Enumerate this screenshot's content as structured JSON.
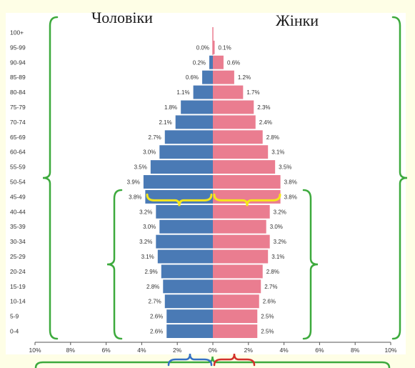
{
  "chart_data": {
    "type": "bar",
    "orientation": "horizontal-population-pyramid",
    "titles": {
      "male": "Чоловіки",
      "female": "Жінки"
    },
    "categories": [
      "0-4",
      "5-9",
      "10-14",
      "15-19",
      "20-24",
      "25-29",
      "30-34",
      "35-39",
      "40-44",
      "45-49",
      "50-54",
      "55-59",
      "60-64",
      "65-69",
      "70-74",
      "75-79",
      "80-84",
      "85-89",
      "90-94",
      "95-99",
      "100+"
    ],
    "series": [
      {
        "name": "Чоловіки",
        "side": "left",
        "color": "#4a7ab5",
        "values": [
          2.6,
          2.6,
          2.7,
          2.8,
          2.9,
          3.1,
          3.2,
          3.0,
          3.2,
          3.8,
          3.9,
          3.5,
          3.0,
          2.7,
          2.1,
          1.8,
          1.1,
          0.6,
          0.2,
          0.0,
          0.0
        ],
        "labels": [
          "2.6%",
          "2.6%",
          "2.7%",
          "2.8%",
          "2.9%",
          "3.1%",
          "3.2%",
          "3.0%",
          "3.2%",
          "3.8%",
          "3.9%",
          "3.5%",
          "3.0%",
          "2.7%",
          "2.1%",
          "1.8%",
          "1.1%",
          "0.6%",
          "0.2%",
          "0.0%",
          ""
        ]
      },
      {
        "name": "Жінки",
        "side": "right",
        "color": "#ea7d90",
        "values": [
          2.5,
          2.5,
          2.6,
          2.7,
          2.8,
          3.1,
          3.2,
          3.0,
          3.2,
          3.8,
          3.8,
          3.5,
          3.1,
          2.8,
          2.4,
          2.3,
          1.7,
          1.2,
          0.6,
          0.1,
          0.0
        ],
        "labels": [
          "2.5%",
          "2.5%",
          "2.6%",
          "2.7%",
          "2.8%",
          "3.1%",
          "3.2%",
          "3.0%",
          "3.2%",
          "3.8%",
          "3.8%",
          "3.5%",
          "3.1%",
          "2.8%",
          "2.4%",
          "2.3%",
          "1.7%",
          "1.2%",
          "0.6%",
          "0.1%",
          ""
        ]
      }
    ],
    "xlim": [
      -10,
      10
    ],
    "xticks": [
      "10%",
      "8%",
      "6%",
      "4%",
      "2%",
      "0%",
      "2%",
      "4%",
      "6%",
      "8%",
      "10%"
    ],
    "grid": false,
    "annotation_colors": {
      "green": "#3daa3d",
      "yellow": "#f5e61a",
      "blue": "#3470c4",
      "red": "#d2302a"
    }
  }
}
